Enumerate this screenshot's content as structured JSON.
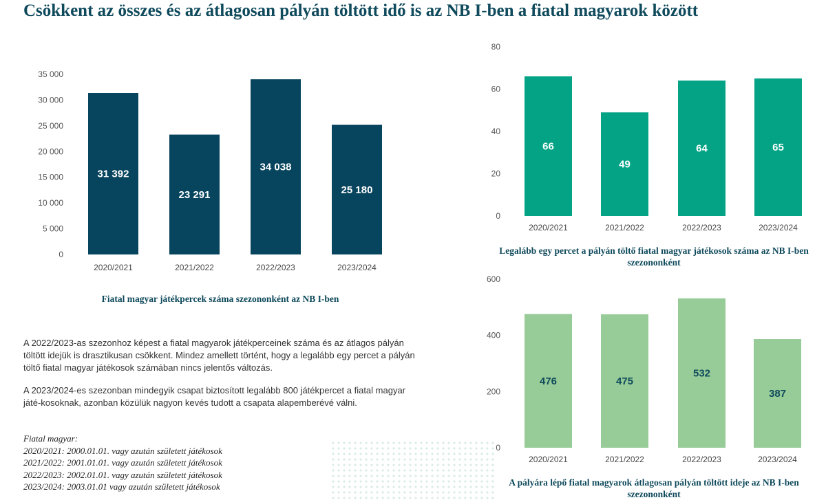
{
  "title": "Csökkent az összes és az átlagosan pályán töltött idő is az NB I-ben a fiatal magyarok között",
  "colors": {
    "title": "#0f4a5c",
    "chart1_bar": "#07445e",
    "chart2_bar": "#05a386",
    "chart3_bar": "#97cc98"
  },
  "paragraphs": [
    "A 2022/2023-as szezonhoz képest a fiatal magyarok játékperceinek száma és az átlagos pályán töltött idejük is drasztikusan csökkent. Mindez amellett történt, hogy a legalább egy percet a pályán töltő fiatal magyar játékosok számában nincs jelentős változás.",
    "A 2023/2024-es szezonban mindegyik csapat biztosított legalább 800 játékpercet a fiatal magyar játé-kosoknak, azonban közülük nagyon kevés tudott a csapata alapemberévé válni."
  ],
  "notes": {
    "heading": "Fiatal magyar:",
    "lines": [
      "2020/2021: 2000.01.01. vagy azután született játékosok",
      "2021/2022: 2001.01.01. vagy azután született játékosok",
      "2022/2023: 2002.01.01. vagy azután született játékosok",
      "2023/2024: 2003.01.01 vagy azután született játékosok"
    ]
  },
  "chart_data": [
    {
      "type": "bar",
      "title": "Fiatal magyar játékpercek száma szezononként az NB I-ben",
      "categories": [
        "2020/2021",
        "2021/2022",
        "2022/2023",
        "2023/2024"
      ],
      "values": [
        31392,
        23291,
        34038,
        25180
      ],
      "value_labels": [
        "31 392",
        "23 291",
        "34 038",
        "25 180"
      ],
      "yticks": [
        0,
        5000,
        10000,
        15000,
        20000,
        25000,
        30000,
        35000
      ],
      "ytick_labels": [
        "0",
        "5 000",
        "10 000",
        "15 000",
        "20 000",
        "25 000",
        "30 000",
        "35 000"
      ],
      "ylim": [
        0,
        35000
      ],
      "grid": false,
      "xlabel": "",
      "ylabel": ""
    },
    {
      "type": "bar",
      "title": "Legalább egy percet a pályán töltő fiatal magyar játékosok száma az NB I-ben szezononként",
      "categories": [
        "2020/2021",
        "2021/2022",
        "2022/2023",
        "2023/2024"
      ],
      "values": [
        66,
        49,
        64,
        65
      ],
      "value_labels": [
        "66",
        "49",
        "64",
        "65"
      ],
      "yticks": [
        0,
        20,
        40,
        60,
        80
      ],
      "ytick_labels": [
        "0",
        "20",
        "40",
        "60",
        "80"
      ],
      "ylim": [
        0,
        80
      ],
      "grid": false,
      "xlabel": "",
      "ylabel": ""
    },
    {
      "type": "bar",
      "title": "A pályára lépő fiatal magyarok átlagosan pályán töltött ideje az NB I-ben szezononként",
      "categories": [
        "2020/2021",
        "2021/2022",
        "2022/2023",
        "2023/2024"
      ],
      "values": [
        476,
        475,
        532,
        387
      ],
      "value_labels": [
        "476",
        "475",
        "532",
        "387"
      ],
      "yticks": [
        0,
        200,
        400,
        600
      ],
      "ytick_labels": [
        "0",
        "200",
        "400",
        "600"
      ],
      "ylim": [
        0,
        600
      ],
      "grid": false,
      "xlabel": "",
      "ylabel": ""
    }
  ]
}
